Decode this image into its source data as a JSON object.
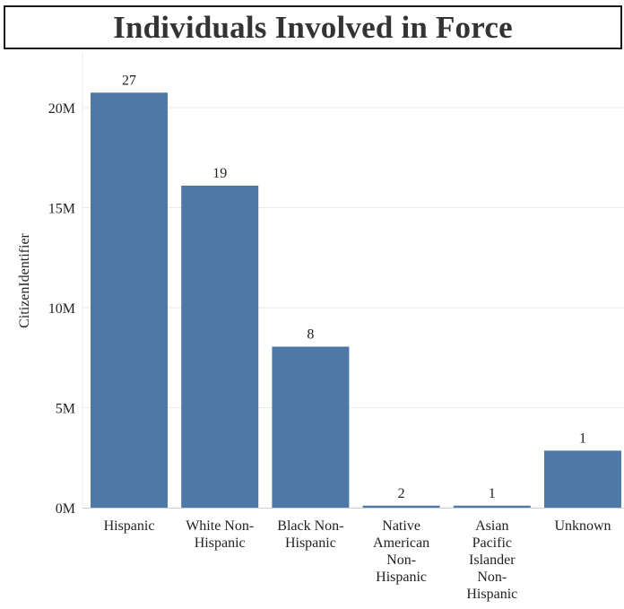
{
  "chart_data": {
    "type": "bar",
    "title": "Individuals Involved in Force",
    "ylabel": "CitizenIdentifier",
    "xlabel": "",
    "ylim": [
      0,
      22000000
    ],
    "yticks": [
      0,
      5000000,
      10000000,
      15000000,
      20000000
    ],
    "ytick_labels": [
      "0M",
      "5M",
      "10M",
      "15M",
      "20M"
    ],
    "grid": true,
    "categories": [
      [
        "Hispanic"
      ],
      [
        "White Non-",
        "Hispanic"
      ],
      [
        "Black Non-",
        "Hispanic"
      ],
      [
        "Native",
        "American",
        "Non-",
        "Hispanic"
      ],
      [
        "Asian",
        "Pacific",
        "Islander",
        "Non-",
        "Hispanic"
      ],
      [
        "Unknown"
      ]
    ],
    "values": [
      20750000,
      16100000,
      8050000,
      100000,
      100000,
      2850000
    ],
    "data_labels": [
      "27",
      "19",
      "8",
      "2",
      "1",
      "1"
    ],
    "colors": {
      "bar": "#4e79a7",
      "grid": "#ebebeb",
      "axis": "#cfcfcf"
    }
  }
}
